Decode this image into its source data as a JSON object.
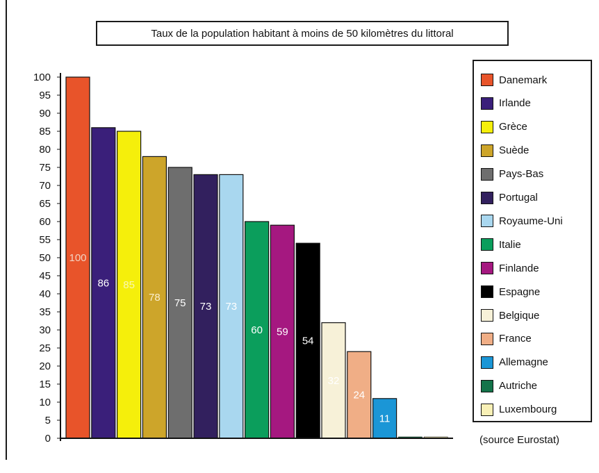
{
  "chart_data": {
    "type": "bar",
    "title": "Taux de la population habitant à moins de 50 kilomètres du littoral",
    "xlabel": "",
    "ylabel": "",
    "ylim": [
      0,
      100
    ],
    "yticks": [
      0,
      5,
      10,
      15,
      20,
      25,
      30,
      35,
      40,
      45,
      50,
      55,
      60,
      65,
      70,
      75,
      80,
      85,
      90,
      95,
      100
    ],
    "grid": false,
    "legend_position": "right",
    "categories": [
      "Danemark",
      "Irlande",
      "Grèce",
      "Suède",
      "Pays-Bas",
      "Portugal",
      "Royaume-Uni",
      "Italie",
      "Finlande",
      "Espagne",
      "Belgique",
      "France",
      "Allemagne",
      "Autriche",
      "Luxembourg"
    ],
    "values": [
      100,
      86,
      85,
      78,
      75,
      73,
      73,
      60,
      59,
      54,
      32,
      24,
      11,
      0,
      0
    ],
    "data_labels": [
      "100",
      "86",
      "85",
      "78",
      "75",
      "73",
      "73",
      "60",
      "59",
      "54",
      "32",
      "24",
      "11",
      "",
      ""
    ],
    "colors": [
      "#e8542a",
      "#3a1f7a",
      "#f5ef0b",
      "#cda52a",
      "#6e6e6e",
      "#32205e",
      "#a9d7ef",
      "#0b9e5c",
      "#a51880",
      "#000000",
      "#f7f1d8",
      "#f0ae86",
      "#1b96d6",
      "#14744a",
      "#f8f0b6"
    ],
    "label_colors": [
      "#f3d3c2",
      "#ffffff",
      "#faf7b0",
      "#faefcf",
      "#ffffff",
      "#ffffff",
      "#ffffff",
      "#ffffff",
      "#ffffff",
      "#ffffff",
      "#ffffff",
      "#ffffff",
      "#ffffff",
      "#ffffff",
      "#ffffff"
    ]
  },
  "source": "(source Eurostat)"
}
